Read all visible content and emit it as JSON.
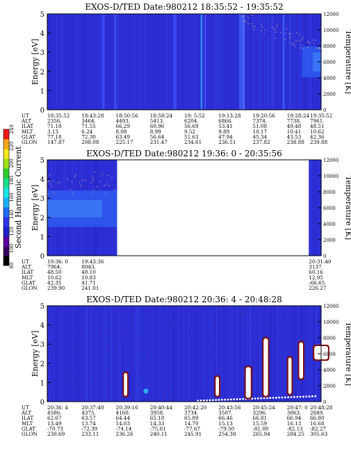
{
  "chart_data": {
    "type": "heatmap",
    "colorbar": {
      "label": "Second Harmonic Current",
      "ticks": [
        "80",
        "100",
        "120",
        "140",
        "160",
        "180",
        "200",
        "220",
        "240"
      ],
      "colors": [
        "#000000",
        "#3a0060",
        "#5a00a0",
        "#2020c8",
        "#2e34e8",
        "#1f6cf6",
        "#19b2f6",
        "#19e6e8",
        "#19e08a",
        "#2ecc2e",
        "#9ee21a",
        "#f2e61a",
        "#f6a61a",
        "#f01a1a"
      ]
    },
    "panels": [
      {
        "title": "EXOS-D/TED   Date:980212  18:35:52 - 19:35:52",
        "ylabel": "Energy [eV]",
        "y2label": "Temperature [K]",
        "ylim": [
          0,
          5
        ],
        "yticks": [
          "0",
          "1",
          "2",
          "3",
          "4",
          "5"
        ],
        "y2ticks": [
          "0",
          "2000",
          "4000",
          "6000",
          "8000",
          "10000",
          "12000"
        ],
        "background": "#2c2ed4",
        "streaks": [
          {
            "t": 0.2,
            "w": 0.01,
            "color": "#3848f2"
          },
          {
            "t": 0.245,
            "w": 0.006,
            "color": "#4050f4"
          },
          {
            "t": 0.255,
            "w": 0.004,
            "color": "#3040e6"
          },
          {
            "t": 0.46,
            "w": 0.012,
            "color": "#3848f2"
          },
          {
            "t": 0.56,
            "w": 0.006,
            "color": "#2f8cf5"
          },
          {
            "t": 0.575,
            "w": 0.003,
            "color": "#4a68f6"
          },
          {
            "t": 0.7,
            "w": 0.02,
            "color": "#3c54f2"
          },
          {
            "t": 0.715,
            "w": 0.006,
            "color": "#4a6af6"
          },
          {
            "t": 0.86,
            "w": 0.005,
            "color": "#3a64f2"
          }
        ],
        "bands": [
          {
            "t0": 0.93,
            "t1": 1.0,
            "e0": 1.7,
            "e1": 3.3,
            "color": "#2f5af0"
          },
          {
            "t0": 0.97,
            "t1": 1.0,
            "e0": 2.0,
            "e1": 3.0,
            "color": "#3a7af4"
          }
        ],
        "dots": [],
        "blobs": [],
        "ut": [
          "18:35:52",
          "18:43:28",
          "18:50:56",
          "18:58:24",
          "19: 5:52",
          "19:13:28",
          "19:20:56",
          "19:28:24",
          "19:35:52"
        ],
        "rows": [
          {
            "label": "ALT",
            "values": [
              "2356.",
              "3464.",
              "4493.",
              "5413.",
              "6204.",
              "6866.",
              "7374.",
              "7738.",
              "7961."
            ]
          },
          {
            "label": "ILAT",
            "values": [
              "71.18",
              "71.55",
              "66.29",
              "60.96",
              "56.69",
              "53.41",
              "51.08",
              "49.48",
              "48.51"
            ]
          },
          {
            "label": "MLT",
            "values": [
              "3.13",
              "6.24",
              "8.08",
              "8.99",
              "9.52",
              "9.89",
              "10.17",
              "10.41",
              "10.62"
            ]
          },
          {
            "label": "GLAT",
            "values": [
              "77.18",
              "72.30",
              "63.49",
              "56.64",
              "51.63",
              "47.94",
              "45.34",
              "43.53",
              "42.36"
            ]
          },
          {
            "label": "GLON",
            "values": [
              "147.87",
              "208.08",
              "225.17",
              "231.47",
              "234.61",
              "236.51",
              "237.82",
              "238.88",
              "239.88"
            ]
          }
        ]
      },
      {
        "title": "EXOS-D/TED   Date:980212  19:36: 0 - 20:35:56",
        "ylabel": "Energy [eV]",
        "y2label": "Temperature [K]",
        "ylim": [
          0,
          5
        ],
        "yticks": [
          "0",
          "1",
          "2",
          "3",
          "4",
          "5"
        ],
        "y2ticks": [
          "0",
          "2000",
          "4000",
          "6000",
          "8000",
          "10000",
          "12000"
        ],
        "data_segments": [
          [
            0.0,
            0.255
          ],
          [
            0.955,
            1.0
          ]
        ],
        "background": "#2c2ed4",
        "streaks": [],
        "bands": [
          {
            "t0": 0.0,
            "t1": 0.255,
            "e0": 1.5,
            "e1": 3.4,
            "color": "#2f5af0"
          },
          {
            "t0": 0.0,
            "t1": 0.2,
            "e0": 2.0,
            "e1": 2.9,
            "color": "#3a7af4"
          }
        ],
        "dots": [],
        "blobs": [],
        "ut": [
          "19:36: 0",
          "19:43:36",
          "20:31:40"
        ],
        "ut_pos": [
          0.0,
          0.125,
          0.955
        ],
        "rows": [
          {
            "label": "ALT",
            "values": [
              "7964.",
              "8043.",
              "3137."
            ]
          },
          {
            "label": "ILAT",
            "values": [
              "48.50",
              "48.10",
              "60.16"
            ]
          },
          {
            "label": "MLT",
            "values": [
              "10.62",
              "10.83",
              "12.95"
            ]
          },
          {
            "label": "GLAT",
            "values": [
              "42.35",
              "41.71",
              "-66.65"
            ]
          },
          {
            "label": "GLON",
            "values": [
              "239.90",
              "241.01",
              "226.27"
            ]
          }
        ]
      },
      {
        "title": "EXOS-D/TED   Date:980212  20:36: 4 - 20:48:28",
        "ylabel": "Energy [eV]",
        "y2label": "Temperature [K]",
        "ylim": [
          0,
          5
        ],
        "yticks": [
          "0",
          "1",
          "2",
          "3",
          "4",
          "5"
        ],
        "y2ticks": [
          "0",
          "2000",
          "4000",
          "6000",
          "8000",
          "10000",
          "12000"
        ],
        "background": "#2c2ed4",
        "streaks": [],
        "bands": [],
        "dots": [],
        "blobs": [
          {
            "t": 0.28,
            "e0": 0.3,
            "e1": 1.5,
            "w": 0.012
          },
          {
            "t": 0.615,
            "e0": 0.3,
            "e1": 1.3,
            "w": 0.012
          },
          {
            "t": 0.725,
            "e0": 0.2,
            "e1": 1.8,
            "w": 0.018
          },
          {
            "t": 0.79,
            "e0": 0.3,
            "e1": 3.3,
            "w": 0.016
          },
          {
            "t": 0.88,
            "e0": 0.4,
            "e1": 2.3,
            "w": 0.012
          },
          {
            "t": 0.92,
            "e0": 1.2,
            "e1": 3.1,
            "w": 0.014
          },
          {
            "t": 0.975,
            "e0": 2.2,
            "e1": 2.9,
            "w": 0.05
          }
        ],
        "ut": [
          "20:36: 4",
          "20:37:40",
          "20:39:16",
          "20:40:44",
          "20:42:20",
          "20:43:56",
          "20:45:24",
          "20:47: 0",
          "20:48:28"
        ],
        "rows": [
          {
            "label": "ALT",
            "values": [
              "4586.",
              "4375.",
              "4160.",
              "3958.",
              "3734.",
              "3507.",
              "3296.",
              "3063.",
              "2849."
            ]
          },
          {
            "label": "ILAT",
            "values": [
              "62.67",
              "63.57",
              "64.44",
              "65.18",
              "65.89",
              "66.46",
              "66.81",
              "66.94",
              "66.80"
            ]
          },
          {
            "label": "MLT",
            "values": [
              "13.49",
              "13.74",
              "14.03",
              "14.33",
              "14.70",
              "15.13",
              "15.59",
              "16.13",
              "16.68"
            ]
          },
          {
            "label": "GLAT",
            "values": [
              "-70.73",
              "-72.39",
              "-74.14",
              "-75.81",
              "-77.67",
              "-79.50",
              "-81.00",
              "-82.13",
              "-82.27"
            ]
          },
          {
            "label": "GLON",
            "values": [
              "230.69",
              "233.11",
              "236.26",
              "240.11",
              "245.91",
              "254.38",
              "265.94",
              "284.25",
              "305.63"
            ]
          }
        ]
      }
    ]
  }
}
